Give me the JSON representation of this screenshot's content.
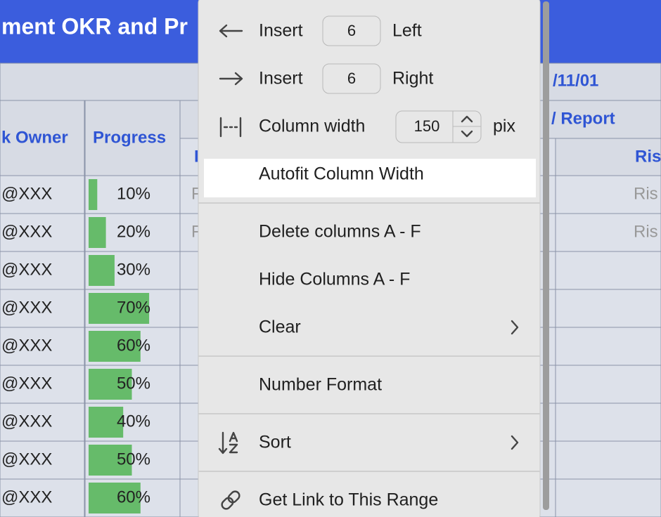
{
  "spreadsheet": {
    "title": "ment OKR and Pr",
    "date_fragment": "/11/01",
    "report_fragment": "/ Report",
    "owner_header": "k Owner",
    "progress_header": "Progress",
    "left_fragment_header": "I",
    "risk_header": "Ris",
    "rows": [
      {
        "owner": "@XXX",
        "progress": {
          "value": 10,
          "label": "10%"
        },
        "mid": "F",
        "risk": "Ris"
      },
      {
        "owner": "@XXX",
        "progress": {
          "value": 20,
          "label": "20%"
        },
        "mid": "F",
        "risk": "Ris"
      },
      {
        "owner": "@XXX",
        "progress": {
          "value": 30,
          "label": "30%"
        }
      },
      {
        "owner": "@XXX",
        "progress": {
          "value": 70,
          "label": "70%"
        }
      },
      {
        "owner": "@XXX",
        "progress": {
          "value": 60,
          "label": "60%"
        }
      },
      {
        "owner": "@XXX",
        "progress": {
          "value": 50,
          "label": "50%"
        }
      },
      {
        "owner": "@XXX",
        "progress": {
          "value": 40,
          "label": "40%"
        }
      },
      {
        "owner": "@XXX",
        "progress": {
          "value": 50,
          "label": "50%"
        }
      },
      {
        "owner": "@XXX",
        "progress": {
          "value": 60,
          "label": "60%"
        }
      }
    ]
  },
  "context_menu": {
    "insert_left": {
      "label": "Insert",
      "count": 6,
      "direction": "Left"
    },
    "insert_right": {
      "label": "Insert",
      "count": 6,
      "direction": "Right"
    },
    "column_width": {
      "label": "Column width",
      "value": 150,
      "unit": "pix"
    },
    "autofit": "Autofit Column Width",
    "delete_columns": "Delete columns A - F",
    "hide_columns": "Hide Columns A - F",
    "clear": "Clear",
    "number_format": "Number Format",
    "sort": "Sort",
    "get_link": "Get Link to This Range"
  }
}
